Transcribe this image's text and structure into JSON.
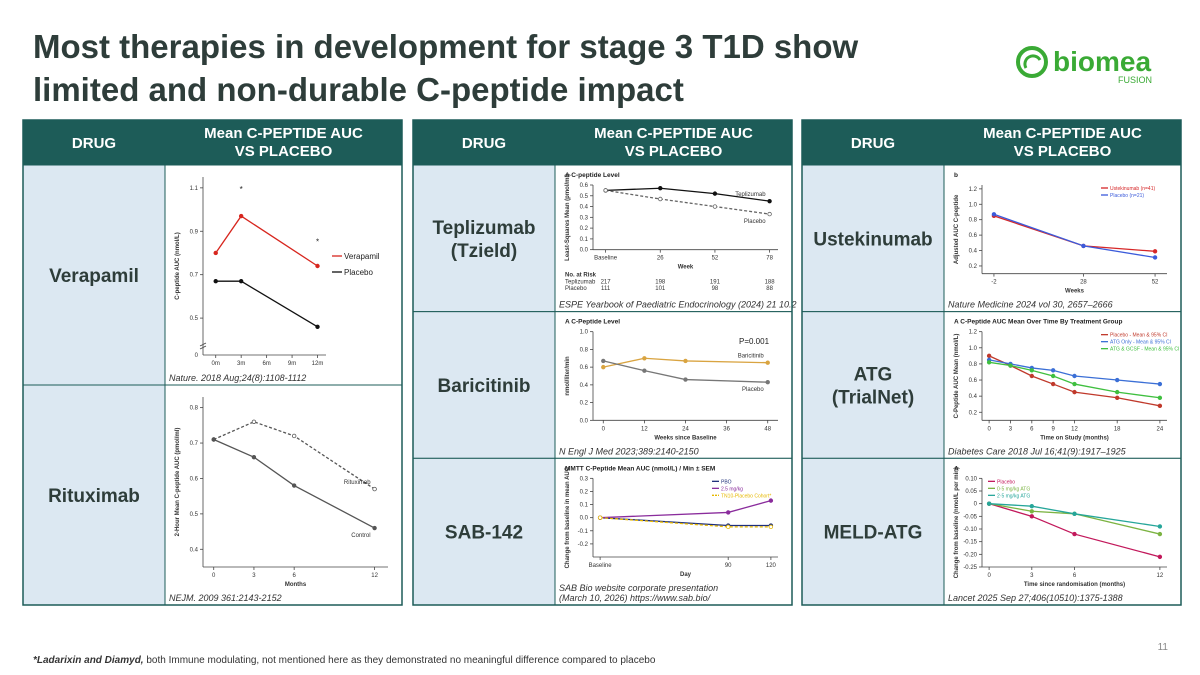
{
  "header": {
    "title": [
      "Most therapies in development for stage 3 T1D show",
      "limited and non-durable C-peptide impact"
    ],
    "logo": "biomea",
    "logo_sub": "FUSION"
  },
  "tables": [
    {
      "headers": [
        "DRUG",
        [
          "Mean C-PEPTIDE AUC",
          "VS PLACEBO"
        ]
      ],
      "rows": [
        {
          "drug": [
            "Verapamil"
          ],
          "source": [
            "Nature. 2018 Aug;24(8):1108-1112"
          ],
          "chart": {
            "type": "line",
            "ylabel": "C-peptide AUC (nmol/L)",
            "xlim": [
              -1.5,
              13
            ],
            "xticks": [
              {
                "value": 0,
                "label": "0m"
              },
              {
                "value": 3,
                "label": "3m"
              },
              {
                "value": 6,
                "label": "6m"
              },
              {
                "value": 9,
                "label": "9m"
              },
              {
                "value": 12,
                "label": "12m"
              }
            ],
            "ylim": [
              0.33,
              1.15
            ],
            "yticks": [
              0.5,
              0.7,
              0.9,
              1.1
            ],
            "y_break_label": 0,
            "legend": "right",
            "series": [
              {
                "name": "Verapamil",
                "color": "#d7261e",
                "x": [
                  0,
                  3,
                  12
                ],
                "values": [
                  0.8,
                  0.97,
                  0.74
                ]
              },
              {
                "name": "Placebo",
                "color": "#111111",
                "x": [
                  0,
                  3,
                  12
                ],
                "values": [
                  0.67,
                  0.67,
                  0.46
                ]
              }
            ],
            "annotations": [
              {
                "text": "*",
                "x": 3,
                "y": 1.08
              },
              {
                "text": "*",
                "x": 12,
                "y": 0.84
              }
            ]
          }
        },
        {
          "drug": [
            "Rituximab"
          ],
          "source": [
            "NEJM. 2009 361:2143-2152"
          ],
          "chart": {
            "type": "line",
            "ylabel": "2-Hour Mean C-peptide AUC (pmol/ml)",
            "xlabel": "Months",
            "x": [
              0,
              3,
              6,
              12
            ],
            "xlim": [
              -0.8,
              13
            ],
            "xticks": [
              0,
              3,
              6,
              12
            ],
            "ylim": [
              0.35,
              0.83
            ],
            "yticks": [
              0.4,
              0.5,
              0.6,
              0.7,
              0.8
            ],
            "legend": "inline",
            "series": [
              {
                "name": "Rituximab",
                "color": "#555555",
                "dash": true,
                "values": [
                  0.71,
                  0.76,
                  0.72,
                  0.57
                ]
              },
              {
                "name": "Control",
                "color": "#555555",
                "values": [
                  0.71,
                  0.66,
                  0.58,
                  0.46
                ]
              }
            ]
          }
        }
      ]
    },
    {
      "headers": [
        "DRUG",
        [
          "Mean C-PEPTIDE AUC",
          "VS PLACEBO"
        ]
      ],
      "rows": [
        {
          "drug": [
            "Teplizumab",
            "(Tzield)"
          ],
          "source": [
            "ESPE Yearbook of Paediatric Endocrinology (2024) 21 10.2"
          ],
          "chart": {
            "type": "line",
            "title": "A  C-peptide Level",
            "ylabel": "Least-Squares Mean (pmol/ml)",
            "xlabel": "Week",
            "x": [
              0,
              26,
              52,
              78
            ],
            "xlim": [
              -6,
              82
            ],
            "xticks": [
              {
                "value": 0,
                "label": "Baseline"
              },
              26,
              52,
              78
            ],
            "ylim": [
              0,
              0.6
            ],
            "yticks": [
              {
                "value": 0,
                "label": "0.0"
              },
              0.1,
              0.2,
              0.3,
              0.4,
              0.5,
              0.6
            ],
            "legend": "inline",
            "series": [
              {
                "name": "Teplizumab",
                "color": "#111111",
                "values": [
                  0.55,
                  0.57,
                  0.52,
                  0.45
                ]
              },
              {
                "name": "Placebo",
                "color": "#666666",
                "dash": true,
                "values": [
                  0.55,
                  0.47,
                  0.4,
                  0.33
                ]
              }
            ],
            "risk_table": {
              "title": "No. at Risk",
              "rows": [
                {
                  "name": "Teplizumab",
                  "values": [
                    217,
                    198,
                    191,
                    188
                  ]
                },
                {
                  "name": "Placebo",
                  "values": [
                    111,
                    101,
                    98,
                    88
                  ]
                }
              ]
            }
          }
        },
        {
          "drug": [
            "Baricitinib"
          ],
          "source": [
            "N Engl J Med 2023;389:2140-2150"
          ],
          "chart": {
            "type": "line",
            "title": "A  C-Peptide Level",
            "ylabel": "nmol/liter/min",
            "xlabel": "Weeks since Baseline",
            "x": [
              0,
              12,
              24,
              48
            ],
            "xlim": [
              -3,
              51
            ],
            "xticks": [
              0,
              12,
              24,
              36,
              48
            ],
            "ylim": [
              0,
              1
            ],
            "yticks": [
              {
                "value": 0,
                "label": "0.0"
              },
              0.2,
              0.4,
              0.6,
              0.8,
              {
                "value": 1,
                "label": "1.0"
              }
            ],
            "legend": "inline",
            "series": [
              {
                "name": "Baricitinib",
                "color": "#d9a441",
                "values": [
                  0.6,
                  0.7,
                  0.67,
                  0.65
                ]
              },
              {
                "name": "Placebo",
                "color": "#777777",
                "values": [
                  0.67,
                  0.56,
                  0.46,
                  0.43
                ]
              }
            ],
            "annotations": [
              {
                "text": "P=0.001",
                "x": 44,
                "y": 0.86
              }
            ]
          }
        },
        {
          "drug": [
            "SAB-142"
          ],
          "source": [
            "SAB Bio website corporate presentation",
            "(March 10, 2026) https://www.sab.bio/"
          ],
          "chart": {
            "type": "line",
            "title": "MMTT C-Peptide Mean AUC (nmol/L) / Min ± SEM",
            "ylabel": "Change from baseline in mean AUC",
            "xlabel": "Day",
            "x": [
              0,
              90,
              120
            ],
            "xlim": [
              -5,
              125
            ],
            "xticks": [
              {
                "value": 0,
                "label": "Baseline"
              },
              90,
              120
            ],
            "ylim": [
              -0.3,
              0.3
            ],
            "yticks": [
              0.3,
              0.2,
              0.1,
              {
                "value": 0,
                "label": "0.0"
              },
              -0.1,
              -0.2
            ],
            "legend": "upper right",
            "series": [
              {
                "name": "PBO",
                "color": "#1f2f7a",
                "values": [
                  0,
                  -0.06,
                  -0.06
                ]
              },
              {
                "name": "2.5 mg/kg",
                "color": "#8a2c9c",
                "values": [
                  0,
                  0.04,
                  0.13
                ]
              },
              {
                "name": "TN10-Placebo Cohort*",
                "color": "#e6b800",
                "dash": true,
                "values": [
                  0,
                  -0.07,
                  -0.07
                ]
              }
            ]
          }
        }
      ]
    },
    {
      "headers": [
        "DRUG",
        [
          "Mean C-PEPTIDE AUC",
          "VS PLACEBO"
        ]
      ],
      "rows": [
        {
          "drug": [
            "Ustekinumab"
          ],
          "source": [
            "Nature Medicine 2024 vol   30, 2657–2666"
          ],
          "chart": {
            "type": "line",
            "title": "b",
            "ylabel": "Adjusted AUC C-peptide",
            "xlabel": "Weeks",
            "x": [
              -2,
              28,
              52
            ],
            "xlim": [
              -6,
              56
            ],
            "xticks": [
              -2,
              28,
              52
            ],
            "ylim": [
              0.1,
              1.25
            ],
            "yticks": [
              0.2,
              0.4,
              0.6,
              0.8,
              {
                "value": 1,
                "label": "1.0"
              },
              1.2
            ],
            "legend": "upper right",
            "series": [
              {
                "name": "Ustekinumab (n=41)",
                "color": "#d62728",
                "values": [
                  0.85,
                  0.46,
                  0.39
                ]
              },
              {
                "name": "Placebo (n=21)",
                "color": "#3b5bdb",
                "values": [
                  0.87,
                  0.46,
                  0.31
                ]
              }
            ]
          }
        },
        {
          "drug": [
            "ATG",
            "(TrialNet)"
          ],
          "source": [
            "Diabetes Care 2018 Jul 16;41(9):1917–1925"
          ],
          "chart": {
            "type": "line",
            "title": "A   C-Peptide AUC Mean Over Time By Treatment Group",
            "ylabel": "C-Peptide AUC Mean (nmol/L)",
            "xlabel": "Time on Study (months)",
            "x": [
              0,
              3,
              6,
              9,
              12,
              18,
              24
            ],
            "xlim": [
              -1,
              25
            ],
            "xticks": [
              0,
              3,
              6,
              9,
              12,
              18,
              24
            ],
            "ylim": [
              0.1,
              1.2
            ],
            "yticks": [
              0.2,
              0.4,
              0.6,
              0.8,
              {
                "value": 1,
                "label": "1.0"
              },
              1.2
            ],
            "legend": "upper right",
            "series": [
              {
                "name": "Placebo - Mean & 95% CI",
                "color": "#c0392b",
                "values": [
                  0.9,
                  0.78,
                  0.65,
                  0.55,
                  0.45,
                  0.38,
                  0.28
                ]
              },
              {
                "name": "ATG Only - Mean & 95% CI",
                "color": "#3b6fd6",
                "values": [
                  0.85,
                  0.8,
                  0.75,
                  0.72,
                  0.65,
                  0.6,
                  0.55
                ]
              },
              {
                "name": "ATG & GCSF - Mean & 95% CI",
                "color": "#3fbf3f",
                "values": [
                  0.82,
                  0.78,
                  0.72,
                  0.65,
                  0.55,
                  0.45,
                  0.38
                ]
              }
            ]
          }
        },
        {
          "drug": [
            "MELD-ATG"
          ],
          "source": [
            "Lancet 2025 Sep 27;406(10510):1375-1388"
          ],
          "chart": {
            "type": "line",
            "title": "A",
            "ylabel": "Change from baseline (nmol/L per min)",
            "xlabel": "Time since randomisation (months)",
            "x": [
              0,
              3,
              6,
              12
            ],
            "xlim": [
              -0.5,
              12.5
            ],
            "xticks": [
              0,
              3,
              6,
              12
            ],
            "ylim": [
              -0.25,
              0.1
            ],
            "yticks": [
              {
                "value": 0.1,
                "label": "0.10"
              },
              0.05,
              0,
              -0.05,
              {
                "value": -0.1,
                "label": "-0.10"
              },
              -0.15,
              {
                "value": -0.2,
                "label": "-0.20"
              },
              -0.25
            ],
            "legend": "upper left",
            "series": [
              {
                "name": "Placebo",
                "color": "#c2185b",
                "values": [
                  0,
                  -0.05,
                  -0.12,
                  -0.21
                ]
              },
              {
                "name": "0·5 mg/kg ATG",
                "color": "#7cb342",
                "values": [
                  0,
                  -0.03,
                  -0.04,
                  -0.12
                ]
              },
              {
                "name": "2·5 mg/kg ATG",
                "color": "#26a69a",
                "values": [
                  0,
                  -0.01,
                  -0.04,
                  -0.09
                ]
              }
            ]
          }
        }
      ]
    }
  ],
  "footnote": {
    "bold": "*Ladarixin and Diamyd,",
    "text": " both Immune modulating, not mentioned here as they demonstrated no meaningful difference compared to placebo"
  },
  "page_number": "11"
}
